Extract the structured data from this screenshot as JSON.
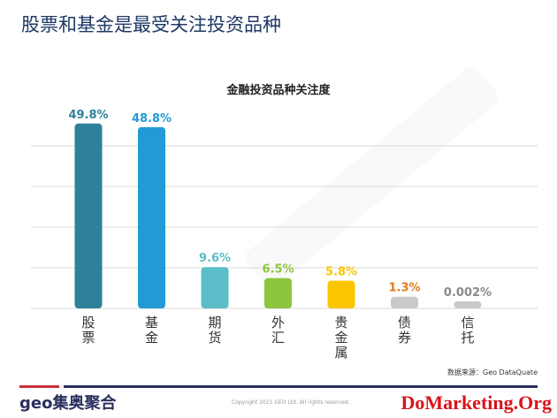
{
  "slide": {
    "title": "股票和基金是最受关注投资品种",
    "watermark": "geo集奥聚合",
    "source": "数据来源：Geo DataQuate",
    "logo": "geo集奥聚合",
    "copyright": "Copyright 2015 GEO Ltd. All rights reserved.",
    "overlay_watermark": "DoMarketing.Org"
  },
  "chart_data": {
    "type": "bar",
    "title": "金融投资品种关注度",
    "categories": [
      "股票",
      "基金",
      "期货",
      "外汇",
      "贵金属",
      "债券",
      "信托"
    ],
    "values": [
      49.8,
      48.8,
      9.6,
      6.5,
      5.8,
      1.3,
      0.002
    ],
    "labels": [
      "49.8%",
      "48.8%",
      "9.6%",
      "6.5%",
      "5.8%",
      "1.3%",
      "0.002%"
    ],
    "colors": [
      "#2e8199",
      "#219ad6",
      "#5bbec8",
      "#8cc63e",
      "#fbc500",
      "#c9c9c9",
      "#c9c9c9"
    ],
    "label_colors": [
      "#2e8199",
      "#219ad6",
      "#5bbec8",
      "#8cc63e",
      "#fbc500",
      "#e07a1d",
      "#8a8a8a"
    ],
    "grid": true,
    "ylim": [
      0,
      50
    ],
    "xlabel": "",
    "ylabel": ""
  }
}
